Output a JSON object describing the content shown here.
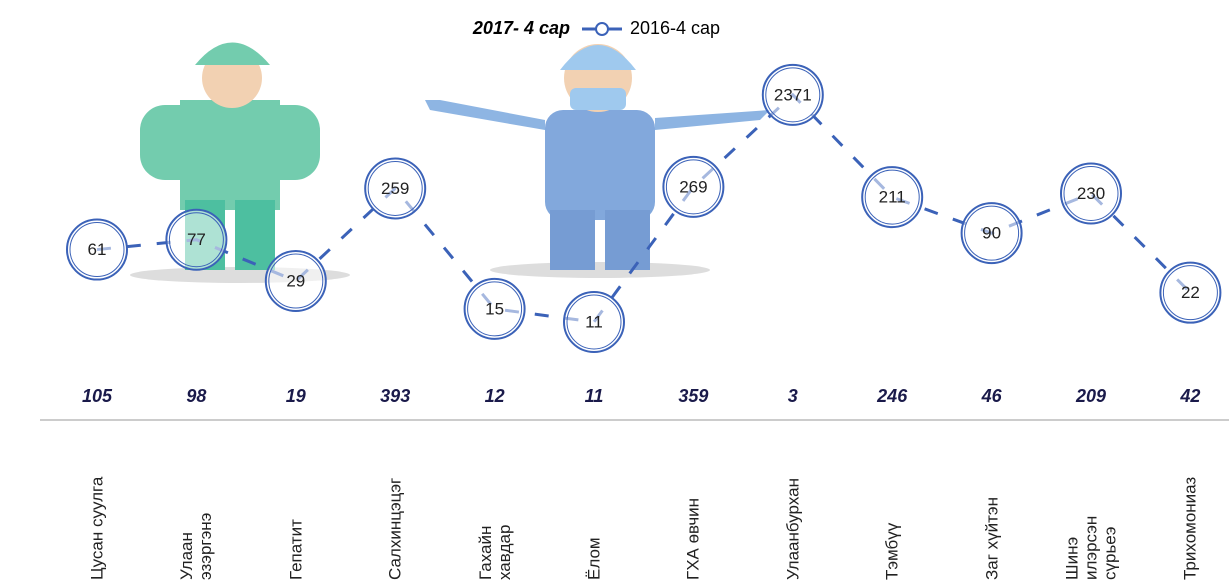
{
  "chart_data": {
    "type": "line",
    "categories": [
      "Цусан суулга",
      "Улаан\nэзэргэнэ",
      "Гепатит",
      "Салхинцэцэг",
      "Гахайн\nхавдар",
      "Ёлом",
      "ГХА өвчин",
      "Улаанбурхан",
      "Тэмбүү",
      "Заг хүйтэн",
      "Шинэ\nилэрсэн\nсүрьеэ",
      "Трихомониаз"
    ],
    "series": [
      {
        "name": "2017- 4 сар",
        "values": [
          105,
          98,
          19,
          393,
          12,
          11,
          359,
          3,
          246,
          46,
          209,
          42
        ]
      },
      {
        "name": "2016-4 сар",
        "color": "#3b62b8",
        "values": [
          61,
          77,
          29,
          259,
          15,
          11,
          269,
          2371,
          211,
          90,
          230,
          22
        ]
      }
    ],
    "log_scale": true,
    "ylim": [
      10,
      10000
    ]
  }
}
